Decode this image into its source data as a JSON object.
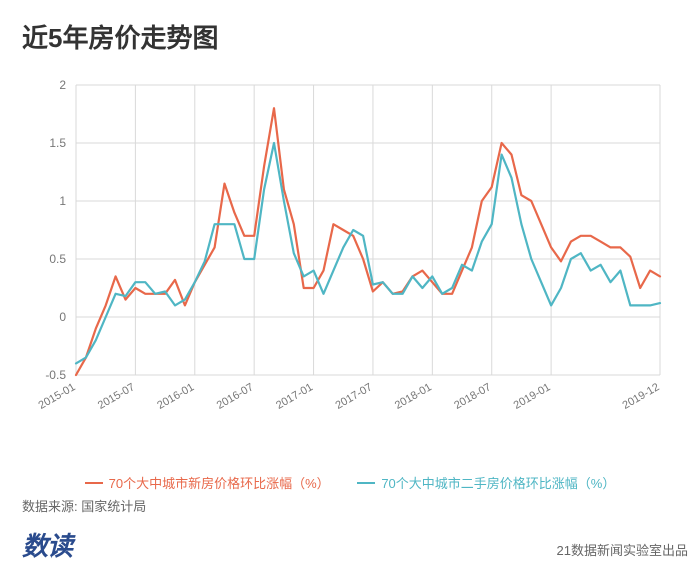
{
  "title": "近5年房价走势图",
  "source_text": "数据来源: 国家统计局",
  "credit_text": "21数据新闻实验室出品",
  "logo_text": "数读",
  "chart": {
    "type": "line",
    "background_color": "#ffffff",
    "grid_color": "#d9d9d9",
    "axis_color": "#cccccc",
    "title_fontsize": 26,
    "title_color": "#333333",
    "label_fontsize": 12,
    "label_color": "#777777",
    "line_width": 2.2,
    "ylim": [
      -0.5,
      2
    ],
    "ytick_step": 0.5,
    "yticks": [
      -0.5,
      0,
      0.5,
      1,
      1.5,
      2
    ],
    "xticks": [
      "2015-01",
      "2015-07",
      "2016-01",
      "2016-07",
      "2017-01",
      "2017-07",
      "2018-01",
      "2018-07",
      "2019-01",
      "2019-12"
    ],
    "x_count": 60,
    "x_rotate_deg": -30,
    "series": [
      {
        "id": "new",
        "label": "70个大中城市新房价格环比涨幅（%）",
        "color": "#e8684a",
        "values": [
          -0.5,
          -0.35,
          -0.1,
          0.1,
          0.35,
          0.15,
          0.25,
          0.2,
          0.2,
          0.2,
          0.32,
          0.1,
          0.3,
          0.45,
          0.6,
          1.15,
          0.9,
          0.7,
          0.7,
          1.3,
          1.8,
          1.1,
          0.8,
          0.25,
          0.25,
          0.4,
          0.8,
          0.75,
          0.7,
          0.5,
          0.22,
          0.3,
          0.2,
          0.22,
          0.35,
          0.4,
          0.3,
          0.2,
          0.2,
          0.4,
          0.6,
          1.0,
          1.12,
          1.5,
          1.4,
          1.05,
          1.0,
          0.8,
          0.6,
          0.48,
          0.65,
          0.7,
          0.7,
          0.65,
          0.6,
          0.6,
          0.52,
          0.25,
          0.4,
          0.35
        ]
      },
      {
        "id": "second_hand",
        "label": "70个大中城市二手房价格环比涨幅（%）",
        "color": "#4fb6c4",
        "values": [
          -0.4,
          -0.35,
          -0.2,
          0.0,
          0.2,
          0.18,
          0.3,
          0.3,
          0.2,
          0.22,
          0.1,
          0.15,
          0.3,
          0.48,
          0.8,
          0.8,
          0.8,
          0.5,
          0.5,
          1.1,
          1.5,
          1.0,
          0.55,
          0.35,
          0.4,
          0.2,
          0.4,
          0.6,
          0.75,
          0.7,
          0.28,
          0.3,
          0.2,
          0.2,
          0.35,
          0.25,
          0.35,
          0.2,
          0.25,
          0.45,
          0.4,
          0.65,
          0.8,
          1.4,
          1.2,
          0.8,
          0.5,
          0.3,
          0.1,
          0.25,
          0.5,
          0.55,
          0.4,
          0.45,
          0.3,
          0.4,
          0.1,
          0.1,
          0.1,
          0.12
        ]
      }
    ],
    "legend": {
      "position": "bottom",
      "fontsize": 13
    }
  }
}
